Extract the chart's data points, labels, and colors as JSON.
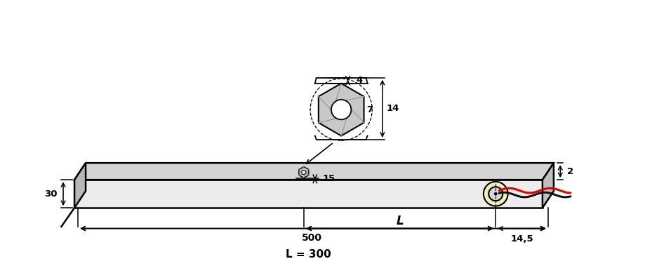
{
  "bg": "#ffffff",
  "beam_face_color": "#e8e8e8",
  "beam_top_color": "#d8d8d8",
  "beam_side_color": "#c0c0c0",
  "hex_color": "#c8c8c8",
  "ring_color": "#f5f0b0",
  "wire_red": "#dd0000",
  "wire_black": "#111111",
  "lw_main": 1.8,
  "lw_dim": 1.1,
  "fs_dim": 9.5,
  "fs_label": 11
}
